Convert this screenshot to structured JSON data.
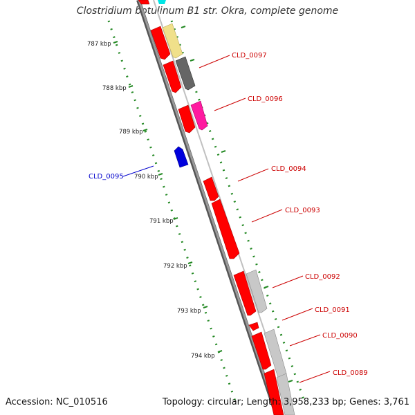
{
  "title": "Clostridium botulinum B1 str. Okra, complete genome",
  "footer": {
    "accession": "Accession: NC_010516",
    "summary": "Topology: circular; Length: 3,958,233 bp; Genes: 3,761"
  },
  "scale_labels": [
    "787 kbp",
    "788 kbp",
    "789 kbp",
    "790 kbp",
    "791 kbp",
    "792 kbp",
    "793 kbp",
    "794 kbp"
  ],
  "gene_labels": [
    {
      "name": "CLD_0097",
      "strand": "forward"
    },
    {
      "name": "CLD_0096",
      "strand": "forward"
    },
    {
      "name": "CLD_0095",
      "strand": "reverse"
    },
    {
      "name": "CLD_0094",
      "strand": "forward"
    },
    {
      "name": "CLD_0093",
      "strand": "forward"
    },
    {
      "name": "CLD_0092",
      "strand": "forward"
    },
    {
      "name": "CLD_0091",
      "strand": "forward"
    },
    {
      "name": "CLD_0090",
      "strand": "forward"
    },
    {
      "name": "CLD_0089",
      "strand": "forward"
    }
  ],
  "colors": {
    "forward_gene": "#ff0000",
    "forward_label": "#cc0000",
    "reverse_gene": "#0000cc",
    "reverse_label": "#0000cc",
    "backbone": "#888888",
    "scale_ticks": "#228822"
  }
}
